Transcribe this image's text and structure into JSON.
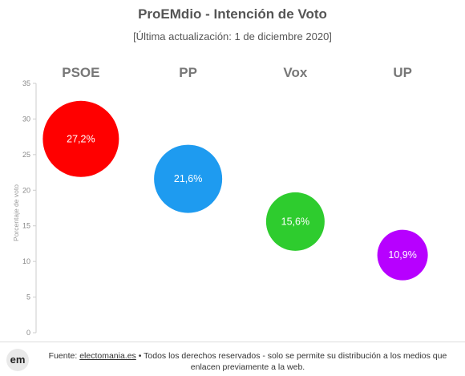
{
  "title": "ProEMdio - Intención de Voto",
  "subtitle": "[Última actualización: 1 de diciembre 2020]",
  "footer": {
    "logo_text": "em",
    "source_prefix": "Fuente: ",
    "source_link": "electomania.es",
    "source_suffix": " • Todos los derechos reservados - solo se permite su distribución a los medios que enlacen previamente a la web."
  },
  "chart_data": {
    "type": "scatter",
    "categories": [
      "PSOE",
      "PP",
      "Vox",
      "UP"
    ],
    "values": [
      27.2,
      21.6,
      15.6,
      10.9
    ],
    "labels": [
      "27,2%",
      "21,6%",
      "15,6%",
      "10,9%"
    ],
    "colors": [
      "#ff0000",
      "#1e9bf0",
      "#2ecc2e",
      "#b700ff"
    ],
    "sizes": [
      95,
      85,
      73,
      63
    ],
    "ylabel": "Porcentaje de voto",
    "ylim": [
      0,
      35
    ],
    "yticks": [
      0,
      5,
      10,
      15,
      20,
      25,
      30,
      35
    ],
    "grid": false
  }
}
